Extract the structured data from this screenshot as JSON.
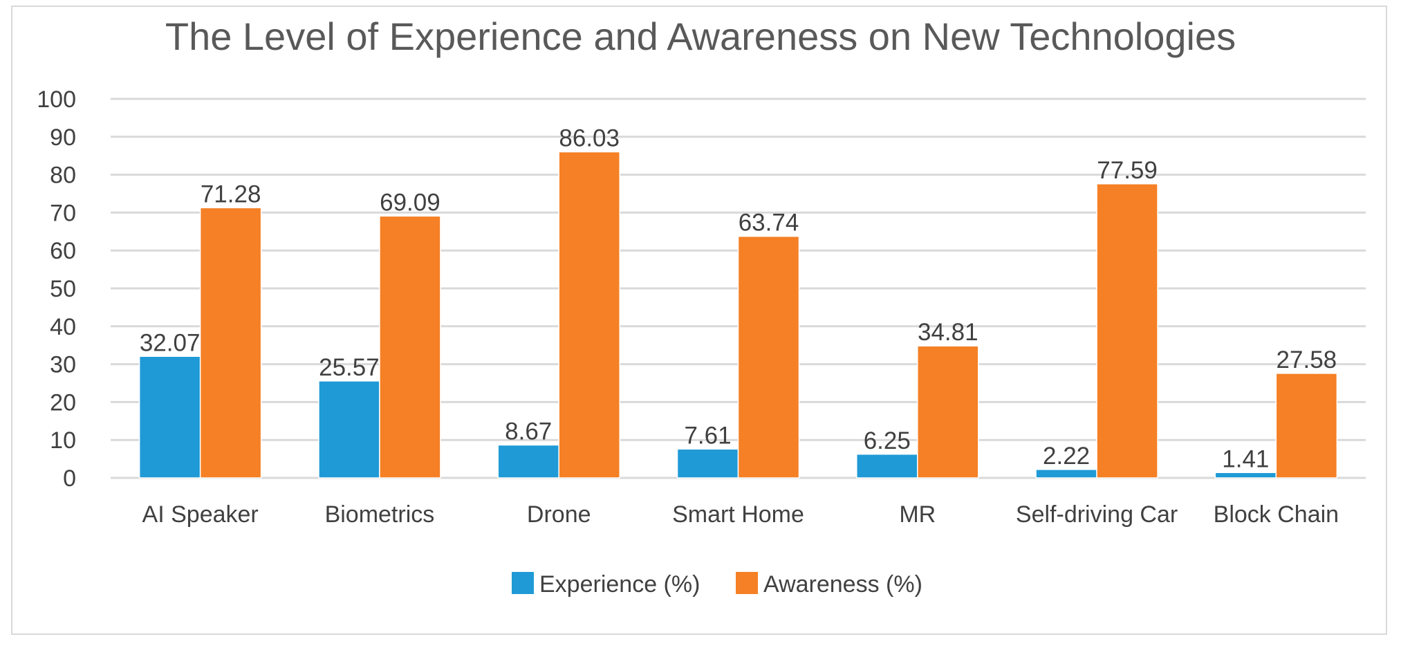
{
  "chart_data": {
    "type": "bar",
    "title": "The Level of Experience and Awareness on New Technologies",
    "xlabel": "",
    "ylabel": "",
    "ylim": [
      0,
      100
    ],
    "yticks": [
      "0",
      "10",
      "20",
      "30",
      "40",
      "50",
      "60",
      "70",
      "80",
      "90",
      "100"
    ],
    "grid": true,
    "legend_position": "bottom",
    "categories": [
      "AI Speaker",
      "Biometrics",
      "Drone",
      "Smart Home",
      "MR",
      "Self-driving Car",
      "Block Chain"
    ],
    "series": [
      {
        "name": "Experience (%)",
        "color": "#1f9ad6",
        "values": [
          32.07,
          25.57,
          8.67,
          7.61,
          6.25,
          2.22,
          1.41
        ],
        "labels": [
          "32.07",
          "25.57",
          "8.67",
          "7.61",
          "6.25",
          "2.22",
          "1.41"
        ]
      },
      {
        "name": "Awareness (%)",
        "color": "#f58025",
        "values": [
          71.28,
          69.09,
          86.03,
          63.74,
          34.81,
          77.59,
          27.58
        ],
        "labels": [
          "71.28",
          "69.09",
          "86.03",
          "63.74",
          "34.81",
          "77.59",
          "27.58"
        ]
      }
    ]
  }
}
